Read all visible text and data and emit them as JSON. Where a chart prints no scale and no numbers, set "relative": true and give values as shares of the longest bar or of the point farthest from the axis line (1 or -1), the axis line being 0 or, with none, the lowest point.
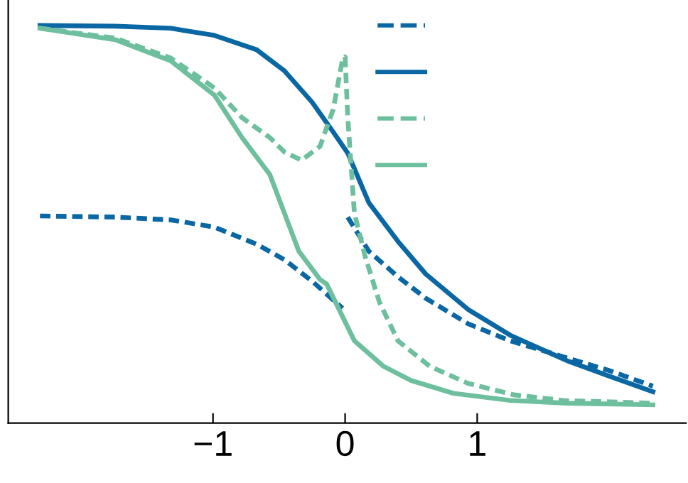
{
  "chart_data": {
    "type": "line",
    "relative": true,
    "xlim": [
      -2.55,
      2.58
    ],
    "xticks": [
      {
        "value": -1,
        "label": "−1"
      },
      0,
      1
    ],
    "tick_labels": "x",
    "grid": false,
    "marker": "none",
    "series": [
      {
        "color": "#0a67a3",
        "line_style": "dashed",
        "x": [
          -2.31,
          -1.74,
          -1.32,
          -0.99,
          -0.67,
          -0.46,
          -0.25,
          -0.02,
          0,
          0.02,
          0.18,
          0.4,
          0.61,
          0.93,
          1.25,
          1.68,
          2.0,
          2.33
        ],
        "values": [
          0.521,
          0.518,
          0.511,
          0.493,
          0.45,
          0.411,
          0.357,
          0.289,
          null,
          0.518,
          0.432,
          0.368,
          0.314,
          0.25,
          0.207,
          0.164,
          0.132,
          0.093
        ]
      },
      {
        "color": "#0a67a3",
        "line_style": "solid",
        "x": [
          -2.31,
          -1.74,
          -1.32,
          -0.99,
          -0.67,
          -0.46,
          -0.25,
          -0.09,
          0.02,
          0.18,
          0.4,
          0.61,
          0.93,
          1.25,
          1.68,
          2.0,
          2.33
        ],
        "values": [
          1.0,
          0.998,
          0.993,
          0.975,
          0.939,
          0.886,
          0.807,
          0.732,
          0.679,
          0.554,
          0.457,
          0.375,
          0.286,
          0.221,
          0.157,
          0.118,
          0.079
        ]
      },
      {
        "color": "#6dbf9e",
        "line_style": "dashed",
        "x": [
          -2.31,
          -1.74,
          -1.32,
          -0.99,
          -0.78,
          -0.57,
          -0.46,
          -0.33,
          -0.19,
          -0.09,
          -0.02,
          0,
          0.02,
          0.07,
          0.15,
          0.26,
          0.4,
          0.64,
          0.93,
          1.28,
          1.65,
          2.33
        ],
        "values": [
          0.993,
          0.968,
          0.918,
          0.843,
          0.768,
          0.718,
          0.682,
          0.661,
          0.696,
          0.789,
          0.914,
          0.921,
          0.768,
          0.529,
          0.421,
          0.304,
          0.207,
          0.143,
          0.1,
          0.071,
          0.057,
          0.05
        ]
      },
      {
        "color": "#6dbf9e",
        "line_style": "solid",
        "x": [
          -2.31,
          -1.74,
          -1.32,
          -0.99,
          -0.78,
          -0.57,
          -0.35,
          -0.19,
          -0.14,
          0.07,
          0.29,
          0.5,
          0.82,
          1.25,
          1.68,
          2.33
        ],
        "values": [
          0.993,
          0.964,
          0.911,
          0.825,
          0.718,
          0.625,
          0.432,
          0.361,
          0.35,
          0.207,
          0.143,
          0.107,
          0.075,
          0.057,
          0.05,
          0.046
        ]
      }
    ]
  }
}
